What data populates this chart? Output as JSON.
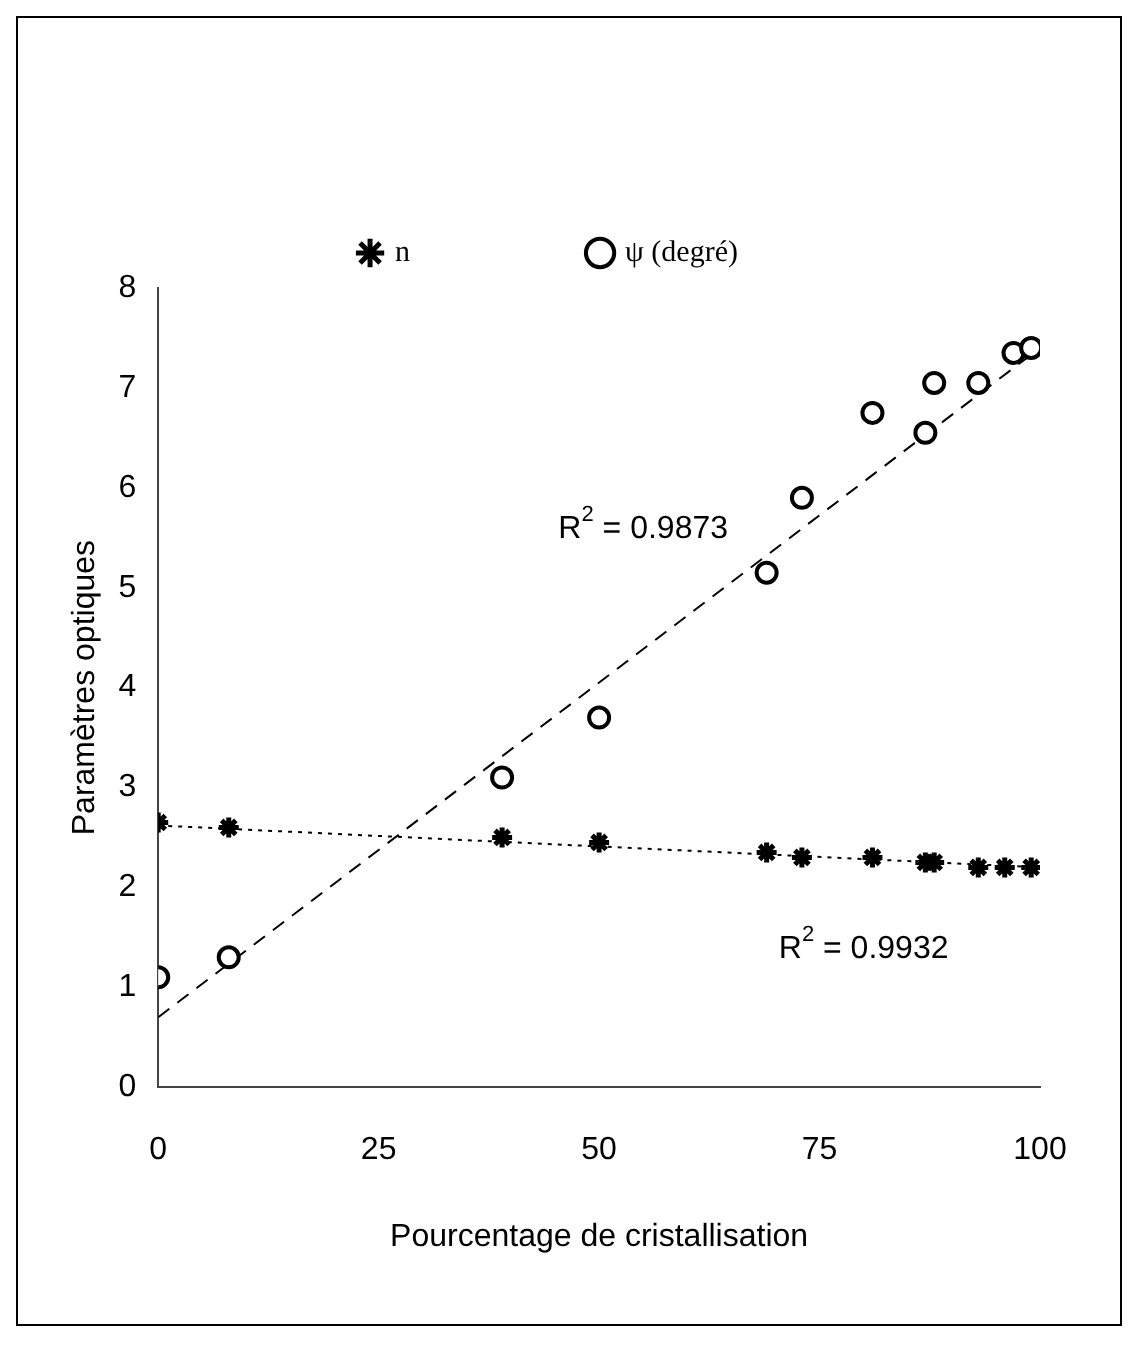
{
  "chart_data": {
    "type": "scatter",
    "xlabel": "Pourcentage de cristallisation",
    "ylabel": "Paramètres optiques",
    "xlim": [
      0,
      100
    ],
    "xticks": [
      0,
      25,
      50,
      75,
      100
    ],
    "ylim": [
      0,
      8
    ],
    "yticks": [
      0,
      1,
      2,
      3,
      4,
      5,
      6,
      7,
      8
    ],
    "grid": false,
    "legend": "top",
    "series": [
      {
        "name": "n",
        "type": "scatter",
        "marker": "cross",
        "color": "#000000",
        "x": [
          0,
          8,
          39,
          50,
          69,
          73,
          81,
          87,
          88,
          93,
          96,
          99
        ],
        "values": [
          2.65,
          2.6,
          2.5,
          2.45,
          2.35,
          2.3,
          2.3,
          2.25,
          2.25,
          2.2,
          2.2,
          2.2
        ]
      },
      {
        "name": "ψ (degré)",
        "type": "scatter",
        "marker": "circle",
        "color": "#000000",
        "x": [
          0,
          8,
          39,
          50,
          69,
          73,
          81,
          87,
          88,
          93,
          97,
          99
        ],
        "values": [
          1.1,
          1.3,
          3.1,
          3.7,
          5.15,
          5.9,
          6.75,
          6.55,
          7.05,
          7.05,
          7.35,
          7.4
        ]
      },
      {
        "type": "line",
        "marker": "none",
        "line_style": "dotted",
        "color": "#000000",
        "x": [
          0,
          100
        ],
        "values": [
          2.62,
          2.2
        ]
      },
      {
        "type": "line",
        "marker": "none",
        "line_style": "dashed",
        "color": "#000000",
        "x": [
          0,
          100
        ],
        "values": [
          0.7,
          7.4
        ]
      }
    ],
    "annotations": [
      "R$^{2}$ = 0.9873",
      "R$^{2}$ = 0.9932"
    ]
  }
}
